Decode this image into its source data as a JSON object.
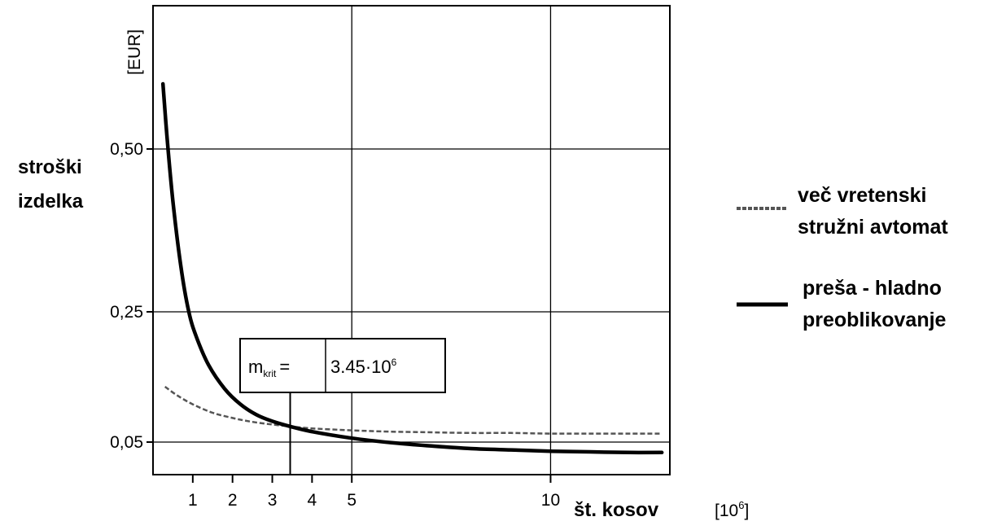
{
  "chart_data": {
    "type": "line",
    "ylabel": [
      "stroški",
      "izdelka"
    ],
    "yunit": "[EUR]",
    "xlabel": "št. kosov",
    "xunit_base": "[10",
    "xunit_exp": "6",
    "xunit_close": "]",
    "xlim": [
      0,
      13
    ],
    "ylim": [
      0,
      0.72
    ],
    "x_ticks": [
      {
        "value": 1,
        "label": "1"
      },
      {
        "value": 2,
        "label": "2"
      },
      {
        "value": 3,
        "label": "3"
      },
      {
        "value": 4,
        "label": "4"
      },
      {
        "value": 5,
        "label": "5"
      },
      {
        "value": 10,
        "label": "10"
      }
    ],
    "y_ticks": [
      {
        "value": 0.05,
        "label": "0,05"
      },
      {
        "value": 0.25,
        "label": "0,25"
      },
      {
        "value": 0.5,
        "label": "0,50"
      }
    ],
    "x_grid": [
      5,
      10
    ],
    "y_grid": [
      0.05,
      0.25,
      0.5
    ],
    "series": [
      {
        "name": "več vretenski stružni avtomat",
        "legend_lines": [
          "več vretenski",
          "stružni avtomat"
        ],
        "style": "dashed",
        "x": [
          0.3,
          0.6,
          1.0,
          1.5,
          2.0,
          2.5,
          3.0,
          3.45,
          4.0,
          5.0,
          6.0,
          7.0,
          8.0,
          9.0,
          10.0,
          11.0,
          12.0,
          12.8
        ],
        "y": [
          0.135,
          0.122,
          0.108,
          0.095,
          0.087,
          0.081,
          0.077,
          0.074,
          0.071,
          0.068,
          0.066,
          0.065,
          0.064,
          0.064,
          0.063,
          0.063,
          0.063,
          0.063
        ]
      },
      {
        "name": "preša - hladno preoblikovanje",
        "legend_lines": [
          "preša - hladno",
          "preoblikovanje"
        ],
        "style": "solid",
        "x": [
          0.25,
          0.35,
          0.5,
          0.7,
          0.9,
          1.1,
          1.4,
          1.8,
          2.2,
          2.6,
          3.0,
          3.45,
          4.0,
          5.0,
          6.0,
          7.0,
          8.0,
          9.0,
          10.0,
          11.0,
          12.0,
          12.8
        ],
        "y": [
          0.6,
          0.52,
          0.42,
          0.32,
          0.25,
          0.21,
          0.168,
          0.132,
          0.108,
          0.092,
          0.082,
          0.074,
          0.066,
          0.056,
          0.049,
          0.044,
          0.04,
          0.038,
          0.036,
          0.035,
          0.034,
          0.034
        ]
      }
    ],
    "annotation": {
      "x": 3.45,
      "symbol": "m",
      "subscript": "krit",
      "equals": "=",
      "value_base": "3.45·10",
      "value_exp": "6"
    }
  }
}
